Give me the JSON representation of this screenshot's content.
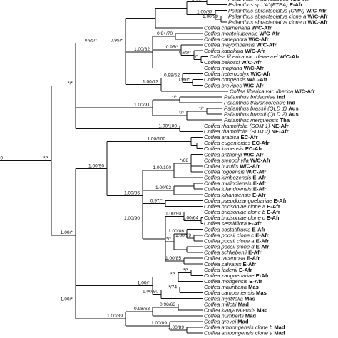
{
  "tips": [
    {
      "taxon": "Psilanthus melanocarpus",
      "region": "W/C-Afr"
    },
    {
      "taxon": "Psilanthus sp. ‘A’ (FTEA)",
      "region": "E-Afr"
    },
    {
      "taxon": "Psilanthus ebracteolatus (CMN)",
      "region": "W/C-Afr"
    },
    {
      "taxon": "Psilanthus ebracteolatus clone a",
      "region": "W/C-Afr"
    },
    {
      "taxon": "Psilanthus ebracteolatus clone b",
      "region": "W/C-Afr"
    },
    {
      "taxon": "Coffea charrieriana",
      "region": "W/C-Afr"
    },
    {
      "taxon": "Coffea montekupensis",
      "region": "W/C-Afr"
    },
    {
      "taxon": "Coffea canephora",
      "region": "W/C-Afr"
    },
    {
      "taxon": "Coffea mayombensis",
      "region": "W/C-Afr"
    },
    {
      "taxon": "Coffea kapakata",
      "region": "W/C-Afr"
    },
    {
      "taxon": "Coffea liberica var. dewevrei",
      "region": "W/C-Afr"
    },
    {
      "taxon": "Coffea bakossi",
      "region": "W/C-Afr"
    },
    {
      "taxon": "Coffea mapiana",
      "region": "W/C-Afr"
    },
    {
      "taxon": "Coffea heterocalyx",
      "region": "W/C-Afr"
    },
    {
      "taxon": "Coffea congensis",
      "region": "W/C-Afr"
    },
    {
      "taxon": "Coffea brevipes",
      "region": "W/C-Afr"
    },
    {
      "taxon": "Coffea liberica var. liberica",
      "region": "W/C-Afr"
    },
    {
      "taxon": "Psilanthus bridsoniae",
      "region": "Ind"
    },
    {
      "taxon": "Psilanthus travancorensis",
      "region": "Ind"
    },
    {
      "taxon": "Psilanthus brassii (QLD 1)",
      "region": "Aus"
    },
    {
      "taxon": "Psilanthus brassii (QLD 2)",
      "region": "Aus"
    },
    {
      "taxon": "Psilanthus merguensis",
      "region": "Tha"
    },
    {
      "taxon": "Coffea rhamnifolia (SOM 1)",
      "region": "NE-Afr"
    },
    {
      "taxon": "Coffea rhamnifolia (SOM 2)",
      "region": "NE-Afr"
    },
    {
      "taxon": "Coffea arabica",
      "region": "EC-Afr"
    },
    {
      "taxon": "Coffea eugenioides",
      "region": "EC-Afr"
    },
    {
      "taxon": "Coffea kivuensis",
      "region": "EC-Afr"
    },
    {
      "taxon": "Coffea anthonyi",
      "region": "W/C-Afr"
    },
    {
      "taxon": "Coffea stenophylla",
      "region": "W/C-Afr"
    },
    {
      "taxon": "Coffea humilis",
      "region": "W/C-Afr"
    },
    {
      "taxon": "Coffea togoensis",
      "region": "W/C-Afr"
    },
    {
      "taxon": "Coffea kimbozensis",
      "region": "E-Afr"
    },
    {
      "taxon": "Coffea mufindiensis",
      "region": "E-Afr"
    },
    {
      "taxon": "Coffea lulandoensis",
      "region": "E-Afr"
    },
    {
      "taxon": "Coffea kihansiensis",
      "region": "E-Afr"
    },
    {
      "taxon": "Coffea pseudozanguebariae",
      "region": "E-Afr"
    },
    {
      "taxon": "Coffea bridsoniae clone a",
      "region": "E-Afr"
    },
    {
      "taxon": "Coffea bridsoniae clone b",
      "region": "E-Afr"
    },
    {
      "taxon": "Coffea bridsoniae clone c",
      "region": "E-Afr"
    },
    {
      "taxon": "Coffea sessiliflora",
      "region": "E-Afr"
    },
    {
      "taxon": "Coffea costatifructa",
      "region": "E-Afr"
    },
    {
      "taxon": "Coffea pocsii clone c",
      "region": "E-Afr"
    },
    {
      "taxon": "Coffea pocsii clone a",
      "region": "E-Afr"
    },
    {
      "taxon": "Coffea pocsii clone d",
      "region": "E-Afr"
    },
    {
      "taxon": "Coffea schliebenii",
      "region": "E-Afr"
    },
    {
      "taxon": "Coffea racemosa",
      "region": "E-Afr"
    },
    {
      "taxon": "Coffea salvatrix",
      "region": "E-Afr"
    },
    {
      "taxon": "Coffea fadenii",
      "region": "E-Afr"
    },
    {
      "taxon": "Coffea zanguebariae",
      "region": "E-Afr"
    },
    {
      "taxon": "Coffea mongensis",
      "region": "E-Afr"
    },
    {
      "taxon": "Coffea mauritiana",
      "region": "Mas"
    },
    {
      "taxon": "Coffea campaniensis",
      "region": "Mas"
    },
    {
      "taxon": "Coffea myrtifolia",
      "region": "Mas"
    },
    {
      "taxon": "Coffea millotii",
      "region": "Mad"
    },
    {
      "taxon": "Coffea kianjavatensis",
      "region": "Mad"
    },
    {
      "taxon": "Coffea humbertii",
      "region": "Mad"
    },
    {
      "taxon": "Coffea grevei",
      "region": "Mad"
    },
    {
      "taxon": "Coffea ambongensis clone b",
      "region": "Mad"
    },
    {
      "taxon": "Coffea ambongensis clone a",
      "region": "Mad"
    }
  ],
  "support_labels": [
    "1.00/*",
    "1.00/87",
    "1.00/99",
    "0.95/*",
    "0.94/70",
    "1.00/82",
    "0.95/*",
    "*/*",
    "1.00/73",
    "0.98/52",
    "0.99/*",
    "*/*",
    "*/*",
    "1.00/91",
    "*/*",
    "1.00/100",
    "*/*",
    "1.00/100",
    "*/68",
    "1.00/100",
    "1.00/92",
    "0.97/*",
    "1.00/90",
    "1.00/64",
    "*/*",
    "1.00/86",
    "1.00/99",
    "1.00/85",
    "*/*",
    "1.00/99",
    "1.00/*",
    "1.00/100",
    "*/74",
    "1.00/90",
    "0.98/63",
    "1.00/89"
  ]
}
